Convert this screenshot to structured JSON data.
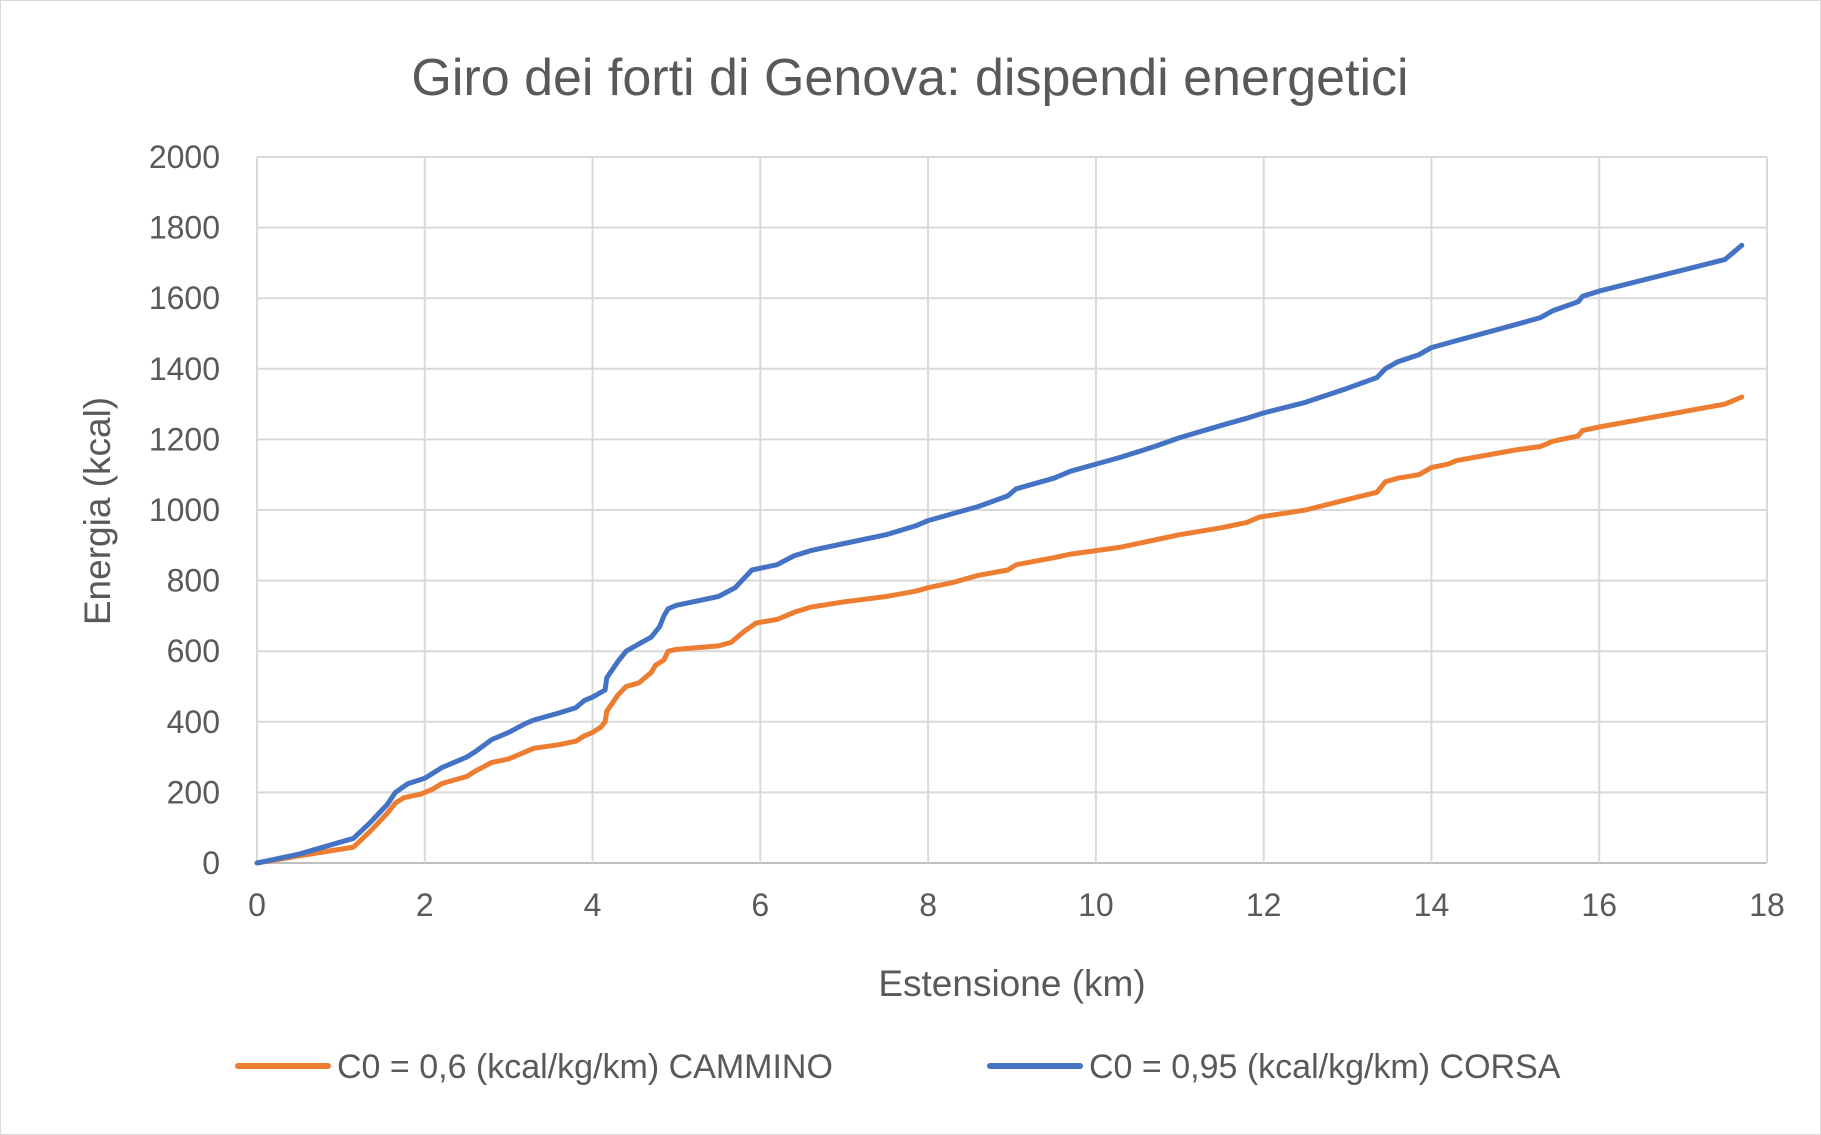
{
  "chart_data": {
    "type": "line",
    "title": "Giro dei forti di Genova: dispendi energetici",
    "xlabel": "Estensione (km)",
    "ylabel": "Energia (kcal)",
    "xlim": [
      0,
      18
    ],
    "ylim": [
      0,
      2000
    ],
    "x_ticks": [
      "0",
      "2",
      "4",
      "6",
      "8",
      "10",
      "12",
      "14",
      "16",
      "18"
    ],
    "y_ticks": [
      "0",
      "200",
      "400",
      "600",
      "800",
      "1000",
      "1200",
      "1400",
      "1600",
      "1800",
      "2000"
    ],
    "grid": true,
    "legend_position": "bottom",
    "series": [
      {
        "name": "C0  = 0,6 (kcal/kg/km) CAMMINO",
        "color": "#ed7d31",
        "x": [
          0,
          0.5,
          1.15,
          1.35,
          1.55,
          1.65,
          1.75,
          1.95,
          2.1,
          2.2,
          2.5,
          2.6,
          2.8,
          3.0,
          3.2,
          3.3,
          3.6,
          3.8,
          3.9,
          4.0,
          4.1,
          4.15,
          4.17,
          4.3,
          4.4,
          4.55,
          4.7,
          4.75,
          4.85,
          4.9,
          5.0,
          5.5,
          5.65,
          5.8,
          5.95,
          6.2,
          6.4,
          6.6,
          7.0,
          7.5,
          7.85,
          8.0,
          8.3,
          8.6,
          8.95,
          9.05,
          9.5,
          9.7,
          10.0,
          10.3,
          10.7,
          11.0,
          11.5,
          11.8,
          11.95,
          12.5,
          13.0,
          13.35,
          13.45,
          13.6,
          13.85,
          14.0,
          14.2,
          14.3,
          15.0,
          15.3,
          15.45,
          15.75,
          15.8,
          16.0,
          17.5,
          17.7
        ],
        "y": [
          0,
          20,
          45,
          90,
          140,
          170,
          185,
          195,
          210,
          225,
          245,
          260,
          285,
          295,
          315,
          325,
          335,
          345,
          360,
          370,
          385,
          400,
          430,
          475,
          500,
          510,
          540,
          560,
          575,
          600,
          605,
          615,
          625,
          655,
          680,
          690,
          710,
          725,
          740,
          755,
          770,
          780,
          795,
          815,
          830,
          845,
          865,
          875,
          885,
          895,
          915,
          930,
          950,
          965,
          980,
          1000,
          1030,
          1050,
          1080,
          1090,
          1100,
          1120,
          1130,
          1140,
          1170,
          1180,
          1195,
          1210,
          1225,
          1235,
          1300,
          1320
        ]
      },
      {
        "name": "C0  = 0,95 (kcal/kg/km) CORSA",
        "color": "#4472c4",
        "x": [
          0,
          0.5,
          1.15,
          1.35,
          1.55,
          1.65,
          1.8,
          2.0,
          2.2,
          2.5,
          2.6,
          2.8,
          3.0,
          3.2,
          3.3,
          3.6,
          3.8,
          3.9,
          4.0,
          4.15,
          4.17,
          4.3,
          4.4,
          4.55,
          4.7,
          4.8,
          4.85,
          4.9,
          5.0,
          5.5,
          5.7,
          5.9,
          6.2,
          6.4,
          6.6,
          7.0,
          7.5,
          7.85,
          8.0,
          8.3,
          8.6,
          8.95,
          9.05,
          9.5,
          9.7,
          10.0,
          10.3,
          10.7,
          11.0,
          11.5,
          11.8,
          12.0,
          12.5,
          13.0,
          13.35,
          13.45,
          13.6,
          13.85,
          14.0,
          14.3,
          15.0,
          15.3,
          15.45,
          15.75,
          15.8,
          16.0,
          17.5,
          17.7
        ],
        "y": [
          0,
          25,
          70,
          115,
          165,
          200,
          225,
          240,
          270,
          300,
          315,
          350,
          370,
          395,
          405,
          425,
          440,
          460,
          470,
          490,
          525,
          570,
          600,
          620,
          640,
          670,
          700,
          720,
          730,
          755,
          780,
          830,
          845,
          870,
          885,
          905,
          930,
          955,
          970,
          990,
          1010,
          1040,
          1060,
          1090,
          1110,
          1130,
          1150,
          1180,
          1205,
          1240,
          1260,
          1275,
          1305,
          1345,
          1375,
          1400,
          1420,
          1440,
          1460,
          1480,
          1525,
          1545,
          1565,
          1590,
          1605,
          1620,
          1710,
          1750
        ]
      }
    ]
  }
}
